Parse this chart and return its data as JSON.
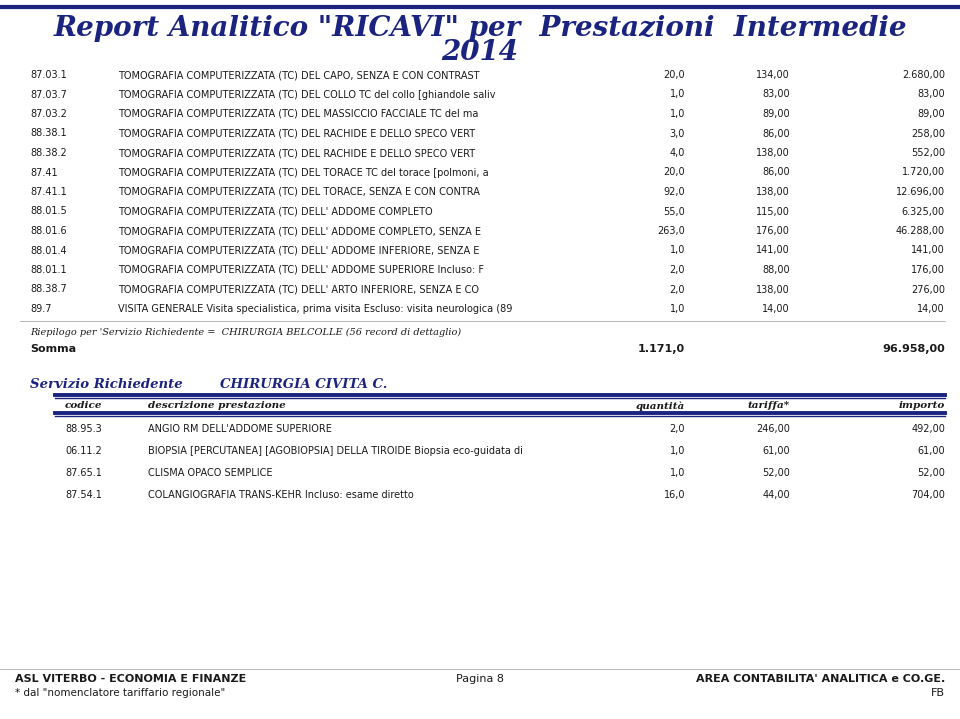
{
  "title_line1": "Report Analitico \"RICAVI\" per  Prestazioni  Intermedie",
  "title_line2": "2014",
  "title_color": "#1a237e",
  "title_fontsize": 20,
  "bg_color": "#ffffff",
  "dark_blue": "#1a237e",
  "text_color": "#1a1a1a",
  "row_text_size": 7.0,
  "header_text_size": 7.5,
  "section1_rows": [
    [
      "87.03.1",
      "TOMOGRAFIA COMPUTERIZZATA (TC) DEL CAPO, SENZA E CON CONTRAST",
      "20,0",
      "134,00",
      "2.680,00"
    ],
    [
      "87.03.7",
      "TOMOGRAFIA COMPUTERIZZATA (TC) DEL COLLO TC del collo [ghiandole saliv",
      "1,0",
      "83,00",
      "83,00"
    ],
    [
      "87.03.2",
      "TOMOGRAFIA COMPUTERIZZATA (TC) DEL MASSICCIO FACCIALE TC del ma",
      "1,0",
      "89,00",
      "89,00"
    ],
    [
      "88.38.1",
      "TOMOGRAFIA COMPUTERIZZATA (TC) DEL RACHIDE E DELLO SPECO VERT",
      "3,0",
      "86,00",
      "258,00"
    ],
    [
      "88.38.2",
      "TOMOGRAFIA COMPUTERIZZATA (TC) DEL RACHIDE E DELLO SPECO VERT",
      "4,0",
      "138,00",
      "552,00"
    ],
    [
      "87.41",
      "TOMOGRAFIA COMPUTERIZZATA (TC) DEL TORACE TC del torace [polmoni, a",
      "20,0",
      "86,00",
      "1.720,00"
    ],
    [
      "87.41.1",
      "TOMOGRAFIA COMPUTERIZZATA (TC) DEL TORACE, SENZA E CON CONTRA",
      "92,0",
      "138,00",
      "12.696,00"
    ],
    [
      "88.01.5",
      "TOMOGRAFIA COMPUTERIZZATA (TC) DELL' ADDOME COMPLETO",
      "55,0",
      "115,00",
      "6.325,00"
    ],
    [
      "88.01.6",
      "TOMOGRAFIA COMPUTERIZZATA (TC) DELL' ADDOME COMPLETO, SENZA E",
      "263,0",
      "176,00",
      "46.288,00"
    ],
    [
      "88.01.4",
      "TOMOGRAFIA COMPUTERIZZATA (TC) DELL' ADDOME INFERIORE, SENZA E",
      "1,0",
      "141,00",
      "141,00"
    ],
    [
      "88.01.1",
      "TOMOGRAFIA COMPUTERIZZATA (TC) DELL' ADDOME SUPERIORE Incluso: F",
      "2,0",
      "88,00",
      "176,00"
    ],
    [
      "88.38.7",
      "TOMOGRAFIA COMPUTERIZZATA (TC) DELL' ARTO INFERIORE, SENZA E CO",
      "2,0",
      "138,00",
      "276,00"
    ],
    [
      "89.7",
      "VISITA GENERALE Visita specialistica, prima visita Escluso: visita neurologica (89",
      "1,0",
      "14,00",
      "14,00"
    ]
  ],
  "riepilogo_text": "Riepilogo per 'Servizio Richiedente =  CHIRURGIA BELCOLLE (56 record di dettaglio)",
  "somma_label": "Somma",
  "somma_qty": "1.171,0",
  "somma_importo": "96.958,00",
  "section2_label": "Servizio Richiedente",
  "section2_value": "CHIRURGIA CIVITA C.",
  "section2_header": [
    "codice",
    "descrizione prestazione",
    "quantità",
    "tariffa*",
    "importo"
  ],
  "section2_rows": [
    [
      "88.95.3",
      "ANGIO RM DELL'ADDOME SUPERIORE",
      "2,0",
      "246,00",
      "492,00"
    ],
    [
      "06.11.2",
      "BIOPSIA [PERCUTANEA] [AGOBIOPSIA] DELLA TIROIDE Biopsia eco-guidata di",
      "1,0",
      "61,00",
      "61,00"
    ],
    [
      "87.65.1",
      "CLISMA OPACO SEMPLICE",
      "1,0",
      "52,00",
      "52,00"
    ],
    [
      "87.54.1",
      "COLANGIOGRAFIA TRANS-KEHR Incluso: esame diretto",
      "16,0",
      "44,00",
      "704,00"
    ]
  ],
  "footer_left": "ASL VITERBO - ECONOMIA E FINANZE",
  "footer_center": "Pagina 8",
  "footer_right": "AREA CONTABILITA' ANALITICA e CO.GE.",
  "footer_sub_left": "* dal \"nomenclatore tariffario regionale\"",
  "footer_sub_right": "FB"
}
